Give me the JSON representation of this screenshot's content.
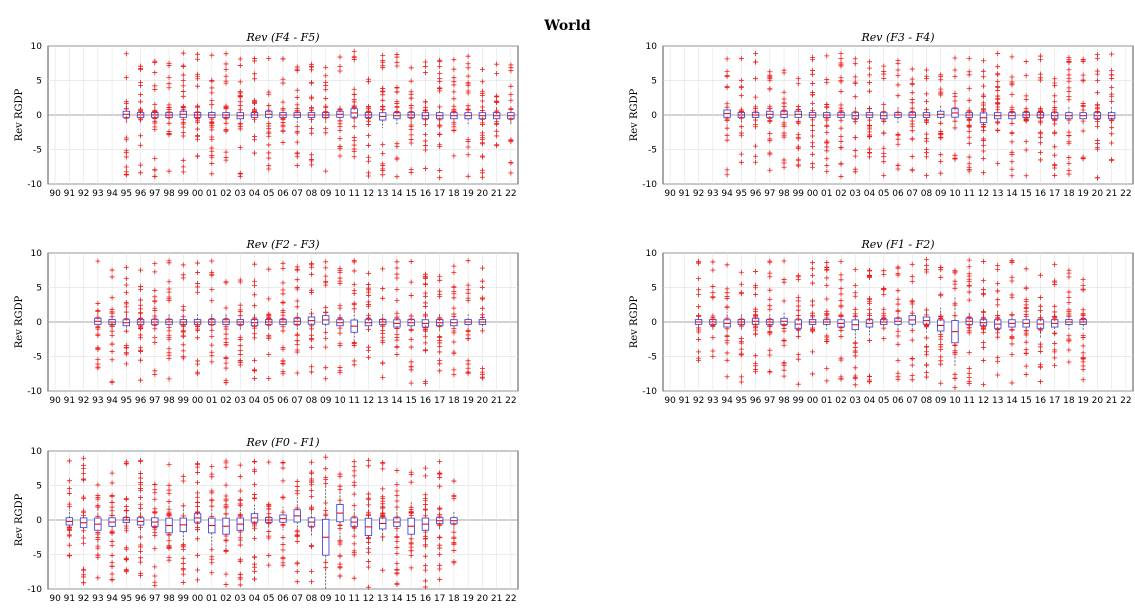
{
  "page_title": "World",
  "chart_data": [
    {
      "type": "box",
      "title": "Rev (F4 - F5)",
      "ylabel": "Rev RGDP",
      "xlabel": "",
      "ylim": [
        -10,
        10
      ],
      "yticks": [
        -10,
        -5,
        0,
        5,
        10
      ],
      "grid": true,
      "categories": [
        "90",
        "91",
        "92",
        "93",
        "94",
        "95",
        "96",
        "97",
        "98",
        "99",
        "00",
        "01",
        "02",
        "03",
        "04",
        "05",
        "06",
        "07",
        "08",
        "09",
        "10",
        "11",
        "12",
        "13",
        "14",
        "15",
        "16",
        "17",
        "18",
        "19",
        "20",
        "21",
        "22"
      ],
      "series": [
        {
          "values": [
            null,
            null,
            null,
            null,
            null,
            0.1,
            0.0,
            0.0,
            0.0,
            0.1,
            0.0,
            0.0,
            0.0,
            -0.1,
            0.0,
            0.1,
            0.0,
            0.0,
            0.0,
            0.0,
            0.1,
            0.3,
            0.0,
            -0.2,
            -0.1,
            0.0,
            -0.1,
            -0.1,
            -0.1,
            -0.1,
            -0.1,
            -0.1,
            -0.1
          ]
        }
      ]
    },
    {
      "type": "box",
      "title": "Rev (F3 - F4)",
      "ylabel": "Rev RGDP",
      "xlabel": "",
      "ylim": [
        -10,
        10
      ],
      "yticks": [
        -10,
        -5,
        0,
        5,
        10
      ],
      "grid": true,
      "categories": [
        "90",
        "91",
        "92",
        "93",
        "94",
        "95",
        "96",
        "97",
        "98",
        "99",
        "00",
        "01",
        "02",
        "03",
        "04",
        "05",
        "06",
        "07",
        "08",
        "09",
        "10",
        "11",
        "12",
        "13",
        "14",
        "15",
        "16",
        "17",
        "18",
        "19",
        "20",
        "21",
        "22"
      ],
      "series": [
        {
          "values": [
            null,
            null,
            null,
            null,
            0.2,
            0.0,
            0.0,
            0.1,
            0.1,
            0.1,
            0.0,
            0.0,
            0.0,
            -0.1,
            0.0,
            -0.1,
            0.0,
            0.0,
            0.0,
            0.1,
            0.3,
            0.0,
            -0.4,
            -0.1,
            -0.1,
            0.0,
            0.0,
            -0.1,
            -0.1,
            -0.1,
            -0.1,
            -0.1,
            null
          ]
        }
      ]
    },
    {
      "type": "box",
      "title": "Rev (F2 - F3)",
      "ylabel": "Rev RGDP",
      "xlabel": "",
      "ylim": [
        -10,
        10
      ],
      "yticks": [
        -10,
        -5,
        0,
        5,
        10
      ],
      "grid": true,
      "categories": [
        "90",
        "91",
        "92",
        "93",
        "94",
        "95",
        "96",
        "97",
        "98",
        "99",
        "00",
        "01",
        "02",
        "03",
        "04",
        "05",
        "06",
        "07",
        "08",
        "09",
        "10",
        "11",
        "12",
        "13",
        "14",
        "15",
        "16",
        "17",
        "18",
        "19",
        "20",
        "21",
        "22"
      ],
      "series": [
        {
          "values": [
            null,
            null,
            null,
            0.1,
            0.0,
            -0.1,
            0.0,
            0.0,
            0.0,
            0.0,
            0.0,
            0.0,
            0.0,
            0.0,
            -0.1,
            0.0,
            0.0,
            0.1,
            0.2,
            0.3,
            -0.1,
            -0.6,
            -0.1,
            0.0,
            -0.2,
            -0.1,
            -0.2,
            -0.1,
            -0.1,
            0.0,
            0.0,
            null,
            null
          ]
        }
      ]
    },
    {
      "type": "box",
      "title": "Rev (F1 - F2)",
      "ylabel": "Rev RGDP",
      "xlabel": "",
      "ylim": [
        -10,
        10
      ],
      "yticks": [
        -10,
        -5,
        0,
        5,
        10
      ],
      "grid": true,
      "categories": [
        "90",
        "91",
        "92",
        "93",
        "94",
        "95",
        "96",
        "97",
        "98",
        "99",
        "00",
        "01",
        "02",
        "03",
        "04",
        "05",
        "06",
        "07",
        "08",
        "09",
        "10",
        "11",
        "12",
        "13",
        "14",
        "15",
        "16",
        "17",
        "18",
        "19",
        "20",
        "21",
        "22"
      ],
      "series": [
        {
          "values": [
            null,
            null,
            0.0,
            0.0,
            -0.2,
            0.0,
            0.1,
            0.0,
            0.1,
            -0.3,
            0.0,
            0.0,
            -0.2,
            -0.4,
            -0.2,
            0.0,
            0.1,
            0.3,
            0.2,
            -0.5,
            -1.4,
            0.1,
            -0.1,
            -0.3,
            -0.2,
            -0.2,
            -0.3,
            -0.2,
            0.0,
            0.0,
            null,
            null,
            null
          ]
        }
      ]
    },
    {
      "type": "box",
      "title": "Rev (F0 - F1)",
      "ylabel": "Rev RGDP",
      "xlabel": "",
      "ylim": [
        -10,
        10
      ],
      "yticks": [
        -10,
        -5,
        0,
        5,
        10
      ],
      "grid": true,
      "categories": [
        "90",
        "91",
        "92",
        "93",
        "94",
        "95",
        "96",
        "97",
        "98",
        "99",
        "00",
        "01",
        "02",
        "03",
        "04",
        "05",
        "06",
        "07",
        "08",
        "09",
        "10",
        "11",
        "12",
        "13",
        "14",
        "15",
        "16",
        "17",
        "18",
        "19",
        "20",
        "21",
        "22"
      ],
      "series": [
        {
          "values": [
            null,
            -0.2,
            -0.4,
            -0.6,
            -0.3,
            0.0,
            -0.2,
            -0.3,
            -0.8,
            -0.7,
            0.3,
            -0.8,
            -0.9,
            -0.6,
            0.3,
            0.0,
            0.2,
            0.6,
            -0.3,
            -2.5,
            1.0,
            -0.3,
            -1.0,
            -0.5,
            -0.3,
            -0.9,
            -0.6,
            -0.1,
            -0.1,
            null,
            null,
            null,
            null
          ]
        }
      ]
    }
  ]
}
